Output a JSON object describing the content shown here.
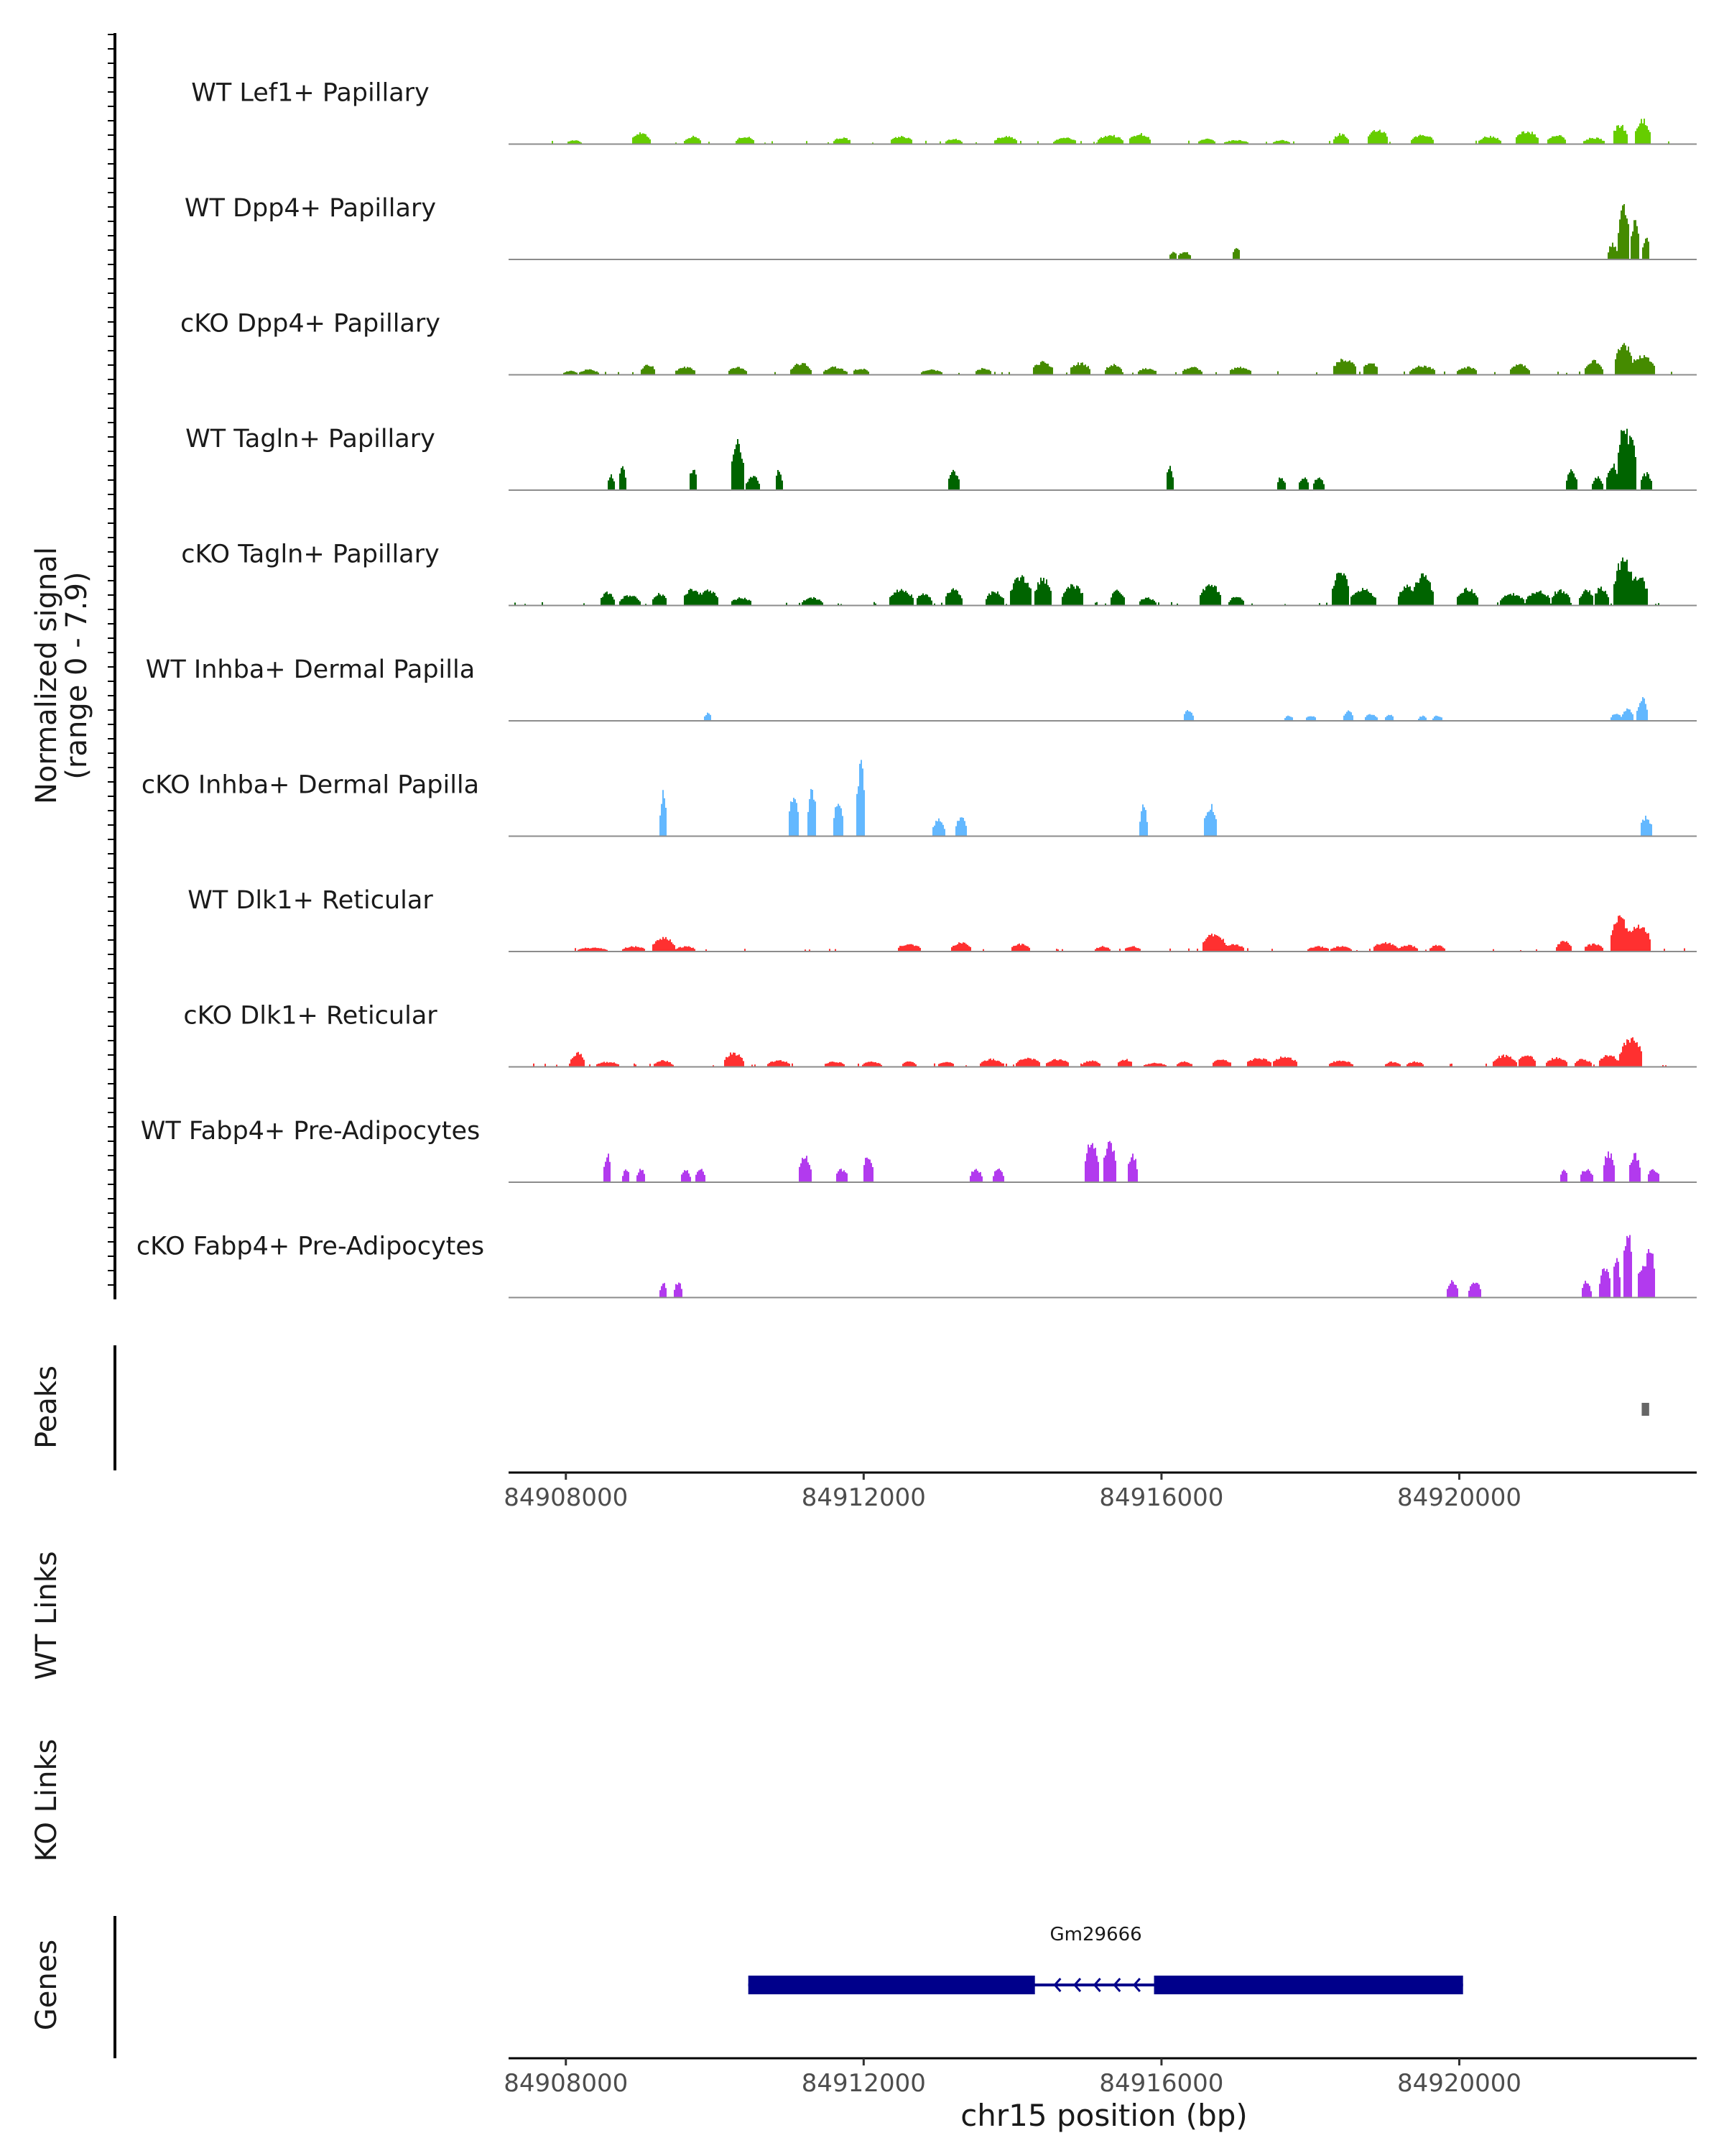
{
  "chart_data": {
    "type": "area",
    "title": "",
    "chromosome": "chr15",
    "xlabel": "chr15 position (bp)",
    "xlim": [
      84907250,
      84923150
    ],
    "xticks": [
      84908000,
      84912000,
      84916000,
      84920000
    ],
    "ylabel_line1": "Normalized signal",
    "ylabel_line2": "(range 0 - 7.9)",
    "ylim": [
      0,
      7.9
    ],
    "track_labels": {
      "peaks": "Peaks",
      "wt_links": "WT Links",
      "ko_links": "KO Links",
      "genes": "Genes"
    },
    "series": [
      {
        "name": "WT Lef1+ Papillary",
        "color": "#66cd00",
        "dense": true,
        "peaks": [
          [
            84908100,
            0.3
          ],
          [
            84909000,
            0.9
          ],
          [
            84909700,
            0.6
          ],
          [
            84910400,
            0.6
          ],
          [
            84911700,
            0.5
          ],
          [
            84912500,
            0.6
          ],
          [
            84913200,
            0.4
          ],
          [
            84913900,
            0.6
          ],
          [
            84914700,
            0.5
          ],
          [
            84915300,
            0.7
          ],
          [
            84915700,
            0.8
          ],
          [
            84916600,
            0.4
          ],
          [
            84917000,
            0.3
          ],
          [
            84917600,
            0.3
          ],
          [
            84918400,
            0.8
          ],
          [
            84918900,
            1.1
          ],
          [
            84919500,
            0.7
          ],
          [
            84920400,
            0.6
          ],
          [
            84920900,
            1.0
          ],
          [
            84921300,
            0.7
          ],
          [
            84921800,
            0.5
          ],
          [
            84922150,
            1.5
          ],
          [
            84922450,
            1.9
          ]
        ]
      },
      {
        "name": "WT Dpp4+ Papillary",
        "color": "#458b00",
        "dense": false,
        "peaks": [
          [
            84916150,
            0.6
          ],
          [
            84916300,
            0.6
          ],
          [
            84917000,
            1.0
          ],
          [
            84922050,
            1.2
          ],
          [
            84922200,
            4.1
          ],
          [
            84922350,
            3.0
          ],
          [
            84922500,
            1.7
          ]
        ]
      },
      {
        "name": "cKO Dpp4+ Papillary",
        "color": "#458b00",
        "dense": true,
        "peaks": [
          [
            84908050,
            0.3
          ],
          [
            84908300,
            0.4
          ],
          [
            84909100,
            0.8
          ],
          [
            84909600,
            0.6
          ],
          [
            84910300,
            0.6
          ],
          [
            84911150,
            0.9
          ],
          [
            84911600,
            0.6
          ],
          [
            84911950,
            0.5
          ],
          [
            84912900,
            0.4
          ],
          [
            84913600,
            0.5
          ],
          [
            84914400,
            1.0
          ],
          [
            84914900,
            0.9
          ],
          [
            84915350,
            0.8
          ],
          [
            84915800,
            0.5
          ],
          [
            84916400,
            0.6
          ],
          [
            84917050,
            0.6
          ],
          [
            84918450,
            1.2
          ],
          [
            84918800,
            1.0
          ],
          [
            84919500,
            0.7
          ],
          [
            84920100,
            0.6
          ],
          [
            84920800,
            0.8
          ],
          [
            84921800,
            1.1
          ],
          [
            84922200,
            2.4
          ],
          [
            84922450,
            1.5
          ]
        ]
      },
      {
        "name": "WT Tagln+ Papillary",
        "color": "#006400",
        "dense": false,
        "peaks": [
          [
            84908600,
            1.2
          ],
          [
            84908750,
            1.7
          ],
          [
            84909700,
            1.6
          ],
          [
            84910300,
            3.7
          ],
          [
            84910500,
            1.1
          ],
          [
            84910850,
            1.7
          ],
          [
            84913200,
            1.5
          ],
          [
            84916100,
            1.8
          ],
          [
            84917600,
            1.0
          ],
          [
            84917900,
            1.0
          ],
          [
            84918100,
            1.0
          ],
          [
            84921500,
            1.6
          ],
          [
            84921850,
            1.0
          ],
          [
            84922050,
            2.0
          ],
          [
            84922200,
            5.2
          ],
          [
            84922300,
            4.2
          ],
          [
            84922500,
            1.3
          ]
        ]
      },
      {
        "name": "cKO Tagln+ Papillary",
        "color": "#006400",
        "dense": true,
        "peaks": [
          [
            84908550,
            1.0
          ],
          [
            84908850,
            0.8
          ],
          [
            84909250,
            0.9
          ],
          [
            84909700,
            1.3
          ],
          [
            84909900,
            1.2
          ],
          [
            84910350,
            0.6
          ],
          [
            84911300,
            0.6
          ],
          [
            84912500,
            1.2
          ],
          [
            84912800,
            0.9
          ],
          [
            84913200,
            1.3
          ],
          [
            84913750,
            1.1
          ],
          [
            84914100,
            2.2
          ],
          [
            84914400,
            2.1
          ],
          [
            84914800,
            1.6
          ],
          [
            84915400,
            1.2
          ],
          [
            84915800,
            0.6
          ],
          [
            84916650,
            1.6
          ],
          [
            84917000,
            0.7
          ],
          [
            84918400,
            2.7
          ],
          [
            84918700,
            1.3
          ],
          [
            84919300,
            1.5
          ],
          [
            84919500,
            2.3
          ],
          [
            84920100,
            1.3
          ],
          [
            84920700,
            0.9
          ],
          [
            84921050,
            1.1
          ],
          [
            84921350,
            1.2
          ],
          [
            84921700,
            1.2
          ],
          [
            84921900,
            1.4
          ],
          [
            84922200,
            3.6
          ],
          [
            84922400,
            2.2
          ]
        ]
      },
      {
        "name": "WT Inhba+ Dermal Papilla",
        "color": "#63b8ff",
        "dense": false,
        "peaks": [
          [
            84909900,
            0.6
          ],
          [
            84916350,
            0.8
          ],
          [
            84917700,
            0.4
          ],
          [
            84918000,
            0.4
          ],
          [
            84918500,
            0.8
          ],
          [
            84918800,
            0.5
          ],
          [
            84919050,
            0.5
          ],
          [
            84919500,
            0.4
          ],
          [
            84919700,
            0.4
          ],
          [
            84922100,
            0.6
          ],
          [
            84922250,
            0.9
          ],
          [
            84922450,
            1.7
          ]
        ]
      },
      {
        "name": "cKO Inhba+ Dermal Papilla",
        "color": "#63b8ff",
        "dense": false,
        "peaks": [
          [
            84909300,
            3.3
          ],
          [
            84911050,
            3.0
          ],
          [
            84911300,
            3.7
          ],
          [
            84911650,
            2.8
          ],
          [
            84911950,
            5.6
          ],
          [
            84913000,
            1.4
          ],
          [
            84913300,
            1.4
          ],
          [
            84915750,
            2.4
          ],
          [
            84916650,
            2.4
          ],
          [
            84922500,
            1.5
          ]
        ]
      },
      {
        "name": "WT Dlk1+ Reticular",
        "color": "#ff3030",
        "dense": true,
        "peaks": [
          [
            84908250,
            0.3
          ],
          [
            84908400,
            0.3
          ],
          [
            84908900,
            0.4
          ],
          [
            84909300,
            1.1
          ],
          [
            84909600,
            0.4
          ],
          [
            84912600,
            0.6
          ],
          [
            84913300,
            0.7
          ],
          [
            84914100,
            0.6
          ],
          [
            84915200,
            0.4
          ],
          [
            84915600,
            0.4
          ],
          [
            84916700,
            1.4
          ],
          [
            84916950,
            0.6
          ],
          [
            84918100,
            0.4
          ],
          [
            84918400,
            0.4
          ],
          [
            84919000,
            0.7
          ],
          [
            84919300,
            0.5
          ],
          [
            84919700,
            0.5
          ],
          [
            84921400,
            0.8
          ],
          [
            84921800,
            0.6
          ],
          [
            84922150,
            2.6
          ],
          [
            84922400,
            2.1
          ]
        ]
      },
      {
        "name": "cKO Dlk1+ Reticular",
        "color": "#ff3030",
        "dense": true,
        "peaks": [
          [
            84908150,
            1.1
          ],
          [
            84908550,
            0.4
          ],
          [
            84909300,
            0.5
          ],
          [
            84910250,
            1.1
          ],
          [
            84910850,
            0.5
          ],
          [
            84911600,
            0.4
          ],
          [
            84912100,
            0.4
          ],
          [
            84912600,
            0.4
          ],
          [
            84913100,
            0.4
          ],
          [
            84913700,
            0.6
          ],
          [
            84914200,
            0.7
          ],
          [
            84914600,
            0.6
          ],
          [
            84915050,
            0.5
          ],
          [
            84915500,
            0.6
          ],
          [
            84915900,
            0.3
          ],
          [
            84916300,
            0.4
          ],
          [
            84916800,
            0.6
          ],
          [
            84917300,
            0.7
          ],
          [
            84917650,
            0.8
          ],
          [
            84918400,
            0.5
          ],
          [
            84919100,
            0.4
          ],
          [
            84919400,
            0.4
          ],
          [
            84920600,
            0.9
          ],
          [
            84920900,
            1.0
          ],
          [
            84921300,
            0.7
          ],
          [
            84921650,
            0.6
          ],
          [
            84922000,
            0.9
          ],
          [
            84922300,
            2.2
          ]
        ]
      },
      {
        "name": "WT Fabp4+ Pre-Adipocytes",
        "color": "#b23aee",
        "dense": false,
        "peaks": [
          [
            84908550,
            2.2
          ],
          [
            84908800,
            1.0
          ],
          [
            84909000,
            1.0
          ],
          [
            84909600,
            1.0
          ],
          [
            84909800,
            1.0
          ],
          [
            84911200,
            2.1
          ],
          [
            84911700,
            1.0
          ],
          [
            84912050,
            2.1
          ],
          [
            84913500,
            1.0
          ],
          [
            84913800,
            1.0
          ],
          [
            84915050,
            3.1
          ],
          [
            84915300,
            3.1
          ],
          [
            84915600,
            2.1
          ],
          [
            84921400,
            1.0
          ],
          [
            84921700,
            1.0
          ],
          [
            84922000,
            2.3
          ],
          [
            84922350,
            2.1
          ],
          [
            84922600,
            1.0
          ]
        ]
      },
      {
        "name": "cKO Fabp4+ Pre-Adipocytes",
        "color": "#b23aee",
        "dense": false,
        "peaks": [
          [
            84909300,
            1.2
          ],
          [
            84909500,
            1.2
          ],
          [
            84919900,
            1.3
          ],
          [
            84920200,
            1.3
          ],
          [
            84921700,
            1.3
          ],
          [
            84921950,
            2.3
          ],
          [
            84922100,
            3.2
          ],
          [
            84922250,
            5.4
          ],
          [
            84922450,
            2.6
          ],
          [
            84922550,
            3.8
          ]
        ]
      }
    ],
    "peak_regions": [
      [
        84922450,
        84922550
      ]
    ],
    "gene": {
      "name": "Gm29666",
      "start": 84910450,
      "end": 84920050,
      "strand": "-",
      "exons": [
        [
          84910450,
          84914300
        ],
        [
          84915900,
          84920050
        ]
      ]
    }
  }
}
